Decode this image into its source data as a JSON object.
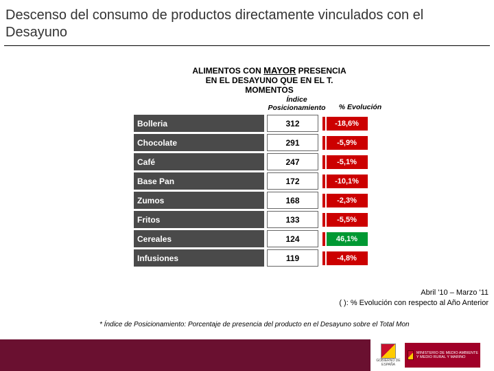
{
  "title": "Descenso del consumo de productos directamente vinculados con el Desayuno",
  "table_header_line1_pre": "ALIMENTOS CON ",
  "table_header_line1_mayor": "MAYOR",
  "table_header_line1_post": " PRESENCIA",
  "table_header_line2": "EN EL DESAYUNO QUE EN EL T.",
  "table_header_line3": "MOMENTOS",
  "col_idx": "Índice Posicionamiento",
  "col_evo": "% Evolución",
  "colors": {
    "neg": "#cc0000",
    "pos": "#009933",
    "tick": "#cc0000",
    "row_bg": "#4a4a4a"
  },
  "rows": [
    {
      "label": "Bolleria",
      "idx": "312",
      "evo": "-18,6%",
      "dir": "neg"
    },
    {
      "label": "Chocolate",
      "idx": "291",
      "evo": "-5,9%",
      "dir": "neg"
    },
    {
      "label": "Café",
      "idx": "247",
      "evo": "-5,1%",
      "dir": "neg"
    },
    {
      "label": "Base Pan",
      "idx": "172",
      "evo": "-10,1%",
      "dir": "neg"
    },
    {
      "label": "Zumos",
      "idx": "168",
      "evo": "-2,3%",
      "dir": "neg"
    },
    {
      "label": "Fritos",
      "idx": "133",
      "evo": "-5,5%",
      "dir": "neg"
    },
    {
      "label": "Cereales",
      "idx": "124",
      "evo": "46,1%",
      "dir": "pos"
    },
    {
      "label": "Infusiones",
      "idx": "119",
      "evo": "-4,8%",
      "dir": "neg"
    }
  ],
  "footer_line1": "Abril '10 – Marzo '11",
  "footer_line2": "( ): % Evolución con respecto al Año Anterior",
  "footnote": "* Índice de Posicionamiento: Porcentaje de presencia del producto en el Desayuno sobre el Total Mon",
  "gov_label": "GOBIERNO DE ESPAÑA",
  "ministry_label": "MINISTERIO DE MEDIO AMBIENTE Y MEDIO RURAL Y MARINO"
}
